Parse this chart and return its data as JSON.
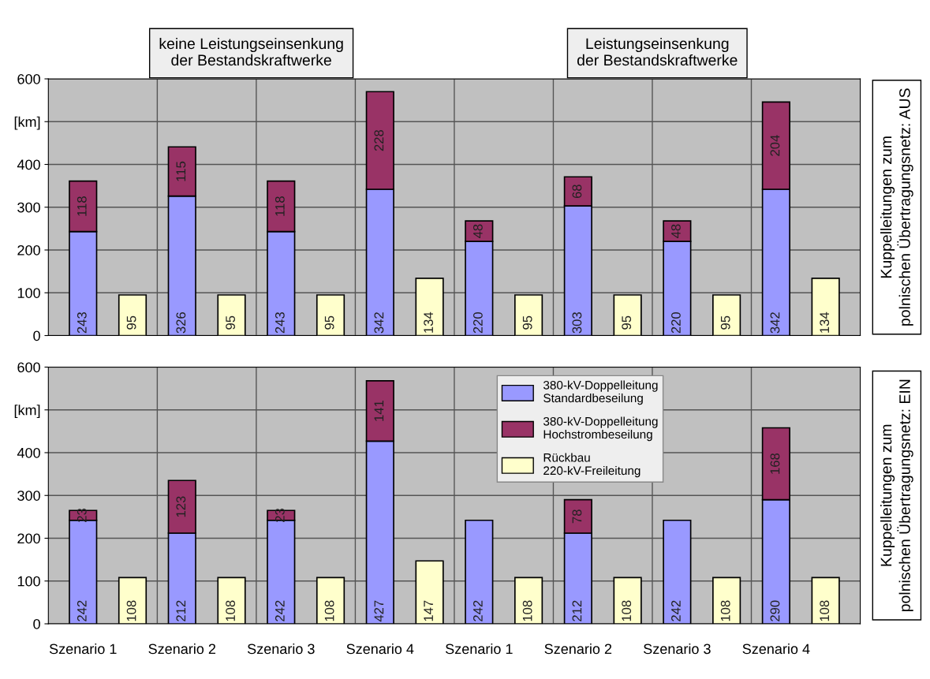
{
  "chart_data": [
    {
      "type": "bar",
      "stacked": true,
      "categories": [
        null,
        null,
        null,
        null,
        null,
        null,
        null,
        null,
        null,
        null,
        null,
        null,
        null,
        null,
        null,
        null
      ],
      "series": [
        {
          "color": "#9999ff",
          "values": [
            243,
            null,
            326,
            null,
            243,
            null,
            342,
            null,
            220,
            null,
            303,
            null,
            220,
            null,
            342,
            null
          ],
          "value_labels": [
            "243",
            null,
            "326",
            null,
            "243",
            null,
            "342",
            null,
            "220",
            null,
            "303",
            null,
            "220",
            null,
            "342",
            null
          ]
        },
        {
          "color": "#993366",
          "values": [
            118,
            null,
            115,
            null,
            118,
            null,
            228,
            null,
            48,
            null,
            68,
            null,
            48,
            null,
            204,
            null
          ],
          "value_labels": [
            "118",
            null,
            "115",
            null,
            "118",
            null,
            "228",
            null,
            "48",
            null,
            "68",
            null,
            "48",
            null,
            "204",
            null
          ]
        },
        {
          "color": "#ffffcc",
          "values": [
            null,
            95,
            null,
            95,
            null,
            95,
            null,
            134,
            null,
            95,
            null,
            95,
            null,
            95,
            null,
            134
          ],
          "value_labels": [
            null,
            "95",
            null,
            "95",
            null,
            "95",
            null,
            "134",
            null,
            "95",
            null,
            "95",
            null,
            "95",
            null,
            "134"
          ]
        }
      ],
      "ylim": [
        0,
        600
      ],
      "yticks": [
        0,
        100,
        200,
        300,
        400,
        {
          "value": 500,
          "label": "[km]"
        },
        600
      ],
      "grid": true,
      "annotations": [
        "keine Leistungseinsenkung\nder Bestandskraftwerke",
        "Leistungseinsenkung\nder Bestandskraftwerke",
        "Kuppelleitungen zum\npolnischen Übertragungsnetz: AUS"
      ]
    },
    {
      "type": "bar",
      "stacked": true,
      "categories": [
        "Szenario 1",
        null,
        "Szenario 2",
        null,
        "Szenario 3",
        null,
        "Szenario 4",
        null,
        "Szenario 1",
        null,
        "Szenario 2",
        null,
        "Szenario 3",
        null,
        "Szenario 4",
        null
      ],
      "series": [
        {
          "name": "380-kV-Doppelleitung\nStandardbeseilung",
          "color": "#9999ff",
          "values": [
            242,
            null,
            212,
            null,
            242,
            null,
            427,
            null,
            242,
            null,
            212,
            null,
            242,
            null,
            290,
            null
          ],
          "value_labels": [
            "242",
            null,
            "212",
            null,
            "242",
            null,
            "427",
            null,
            "242",
            null,
            "212",
            null,
            "242",
            null,
            "290",
            null
          ]
        },
        {
          "name": "380-kV-Doppelleitung\nHochstrombeseilung",
          "color": "#993366",
          "values": [
            23,
            null,
            123,
            null,
            23,
            null,
            141,
            null,
            null,
            null,
            78,
            null,
            null,
            null,
            168,
            null
          ],
          "value_labels": [
            "23",
            null,
            "123",
            null,
            "23",
            null,
            "141",
            null,
            null,
            null,
            "78",
            null,
            null,
            null,
            "168",
            null
          ]
        },
        {
          "name": "Rückbau\n220-kV-Freileitung",
          "color": "#ffffcc",
          "values": [
            null,
            108,
            null,
            108,
            null,
            108,
            null,
            147,
            null,
            108,
            null,
            108,
            null,
            108,
            null,
            108
          ],
          "value_labels": [
            null,
            "108",
            null,
            "108",
            null,
            "108",
            null,
            "147",
            null,
            "108",
            null,
            "108",
            null,
            "108",
            null,
            "108"
          ]
        }
      ],
      "ylim": [
        0,
        600
      ],
      "yticks": [
        0,
        100,
        200,
        300,
        400,
        {
          "value": 500,
          "label": "[km]"
        },
        600
      ],
      "grid": true,
      "legend": "top",
      "annotations": [
        "Kuppelleitungen zum\npolnischen Übertragungsnetz: EIN"
      ]
    }
  ]
}
